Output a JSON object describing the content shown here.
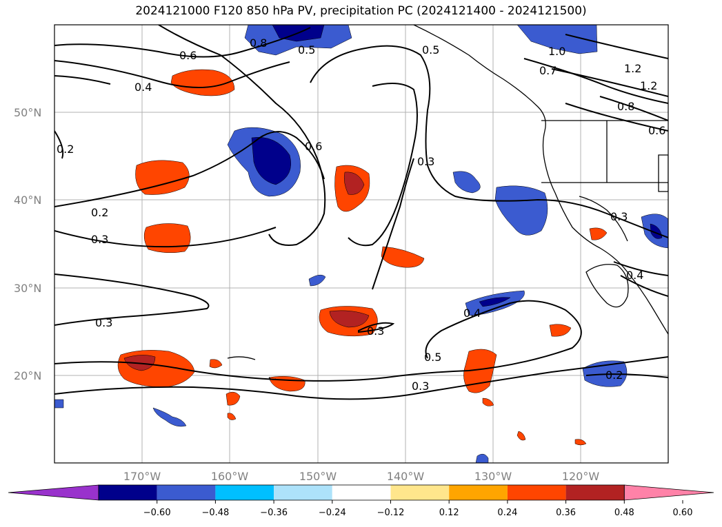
{
  "title": "2024121000 F120 850 hPa PV, precipitation PC (2024121400 - 2024121500)",
  "map": {
    "lat_labels": [
      "50°N",
      "40°N",
      "30°N",
      "20°N"
    ],
    "lon_labels": [
      "170°W",
      "160°W",
      "150°W",
      "140°W",
      "130°W",
      "120°W"
    ],
    "contour_labels": [
      "0.6",
      "0.8",
      "0.5",
      "0.5",
      "1.0",
      "1.2",
      "1.2",
      "0.7",
      "0.8",
      "0.6",
      "0.4",
      "0.2",
      "0.6",
      "0.3",
      "0.2",
      "0.3",
      "0.3",
      "0.3",
      "0.4",
      "0.3",
      "0.5",
      "0.3",
      "0.2",
      "0.4"
    ]
  },
  "colorbar": {
    "colors": [
      "#9932cc",
      "#00008b",
      "#3b5bd0",
      "#00bfff",
      "#ade2fa",
      "#ffffff",
      "#ffe68c",
      "#ffa500",
      "#ff4500",
      "#b22222",
      "#ff82a8"
    ],
    "tick_labels": [
      "−0.60",
      "−0.48",
      "−0.36",
      "−0.24",
      "−0.12",
      "0.12",
      "0.24",
      "0.36",
      "0.48",
      "0.60"
    ]
  }
}
